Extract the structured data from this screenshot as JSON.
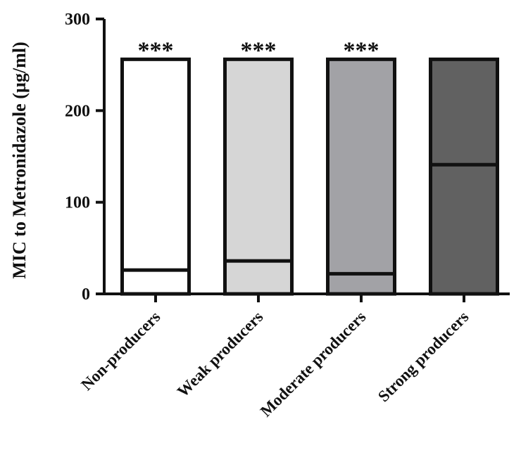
{
  "chart_data": {
    "type": "bar",
    "ylabel": "MIC to Metronidazole (µg/ml)",
    "ylim": [
      0,
      300
    ],
    "yticks": [
      0,
      100,
      200,
      300
    ],
    "grid": false,
    "categories": [
      "Non-producers",
      "Weak producers",
      "Moderate producers",
      "Strong producers"
    ],
    "values": [
      256,
      256,
      256,
      256
    ],
    "medians": [
      26,
      36,
      22,
      141
    ],
    "significance": [
      "***",
      "***",
      "***",
      ""
    ],
    "colors": [
      "#ffffff",
      "#d6d6d6",
      "#a2a2a6",
      "#616161"
    ]
  }
}
